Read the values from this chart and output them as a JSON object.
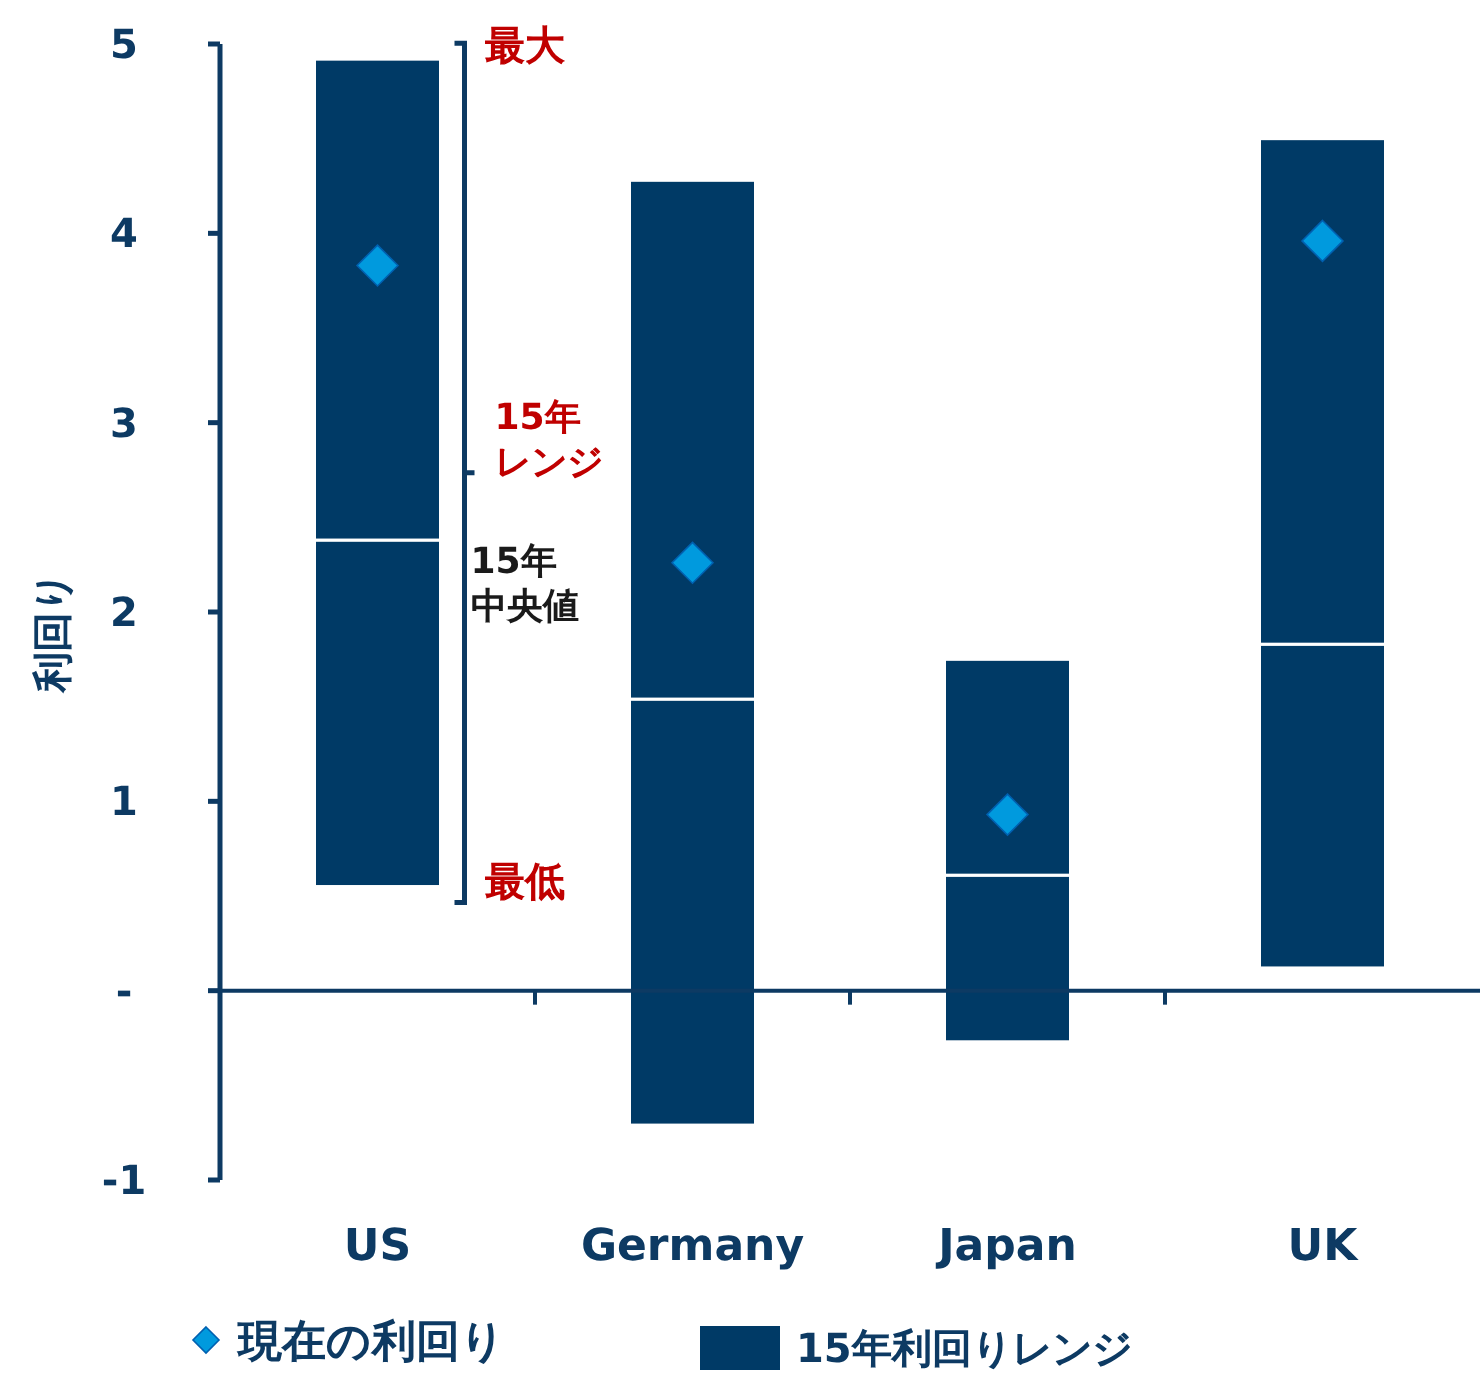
{
  "chart_data": {
    "type": "bar",
    "ylabel": "利回り",
    "categories": [
      "US",
      "Germany",
      "Japan",
      "UK"
    ],
    "series": [
      {
        "name": "15年利回りレンジ",
        "color": "#003a66",
        "base": [
          0.55,
          -0.71,
          -0.27,
          0.12
        ],
        "values": [
          1.83,
          2.25,
          0.88,
          1.71
        ]
      },
      {
        "color": "#003a66",
        "base": [
          2.38,
          1.54,
          0.61,
          1.83
        ],
        "values": [
          2.54,
          2.74,
          1.14,
          2.67
        ]
      },
      {
        "type": "scatter",
        "name": "現在の利回り",
        "color": "#009ade",
        "marker": "diamond",
        "x": [
          "US",
          "Germany",
          "Japan",
          "UK"
        ],
        "values": [
          3.83,
          2.26,
          0.93,
          3.96
        ]
      }
    ],
    "ylim": [
      -1,
      5
    ],
    "yticks": [
      {
        "value": -1,
        "label": "-1"
      },
      {
        "value": 0,
        "label": "-"
      },
      1,
      2,
      3,
      4,
      5
    ],
    "annotations": [
      "最大",
      "15年レンジ",
      "15年中央値",
      "最低"
    ],
    "legend": "bottom",
    "grid": false
  }
}
